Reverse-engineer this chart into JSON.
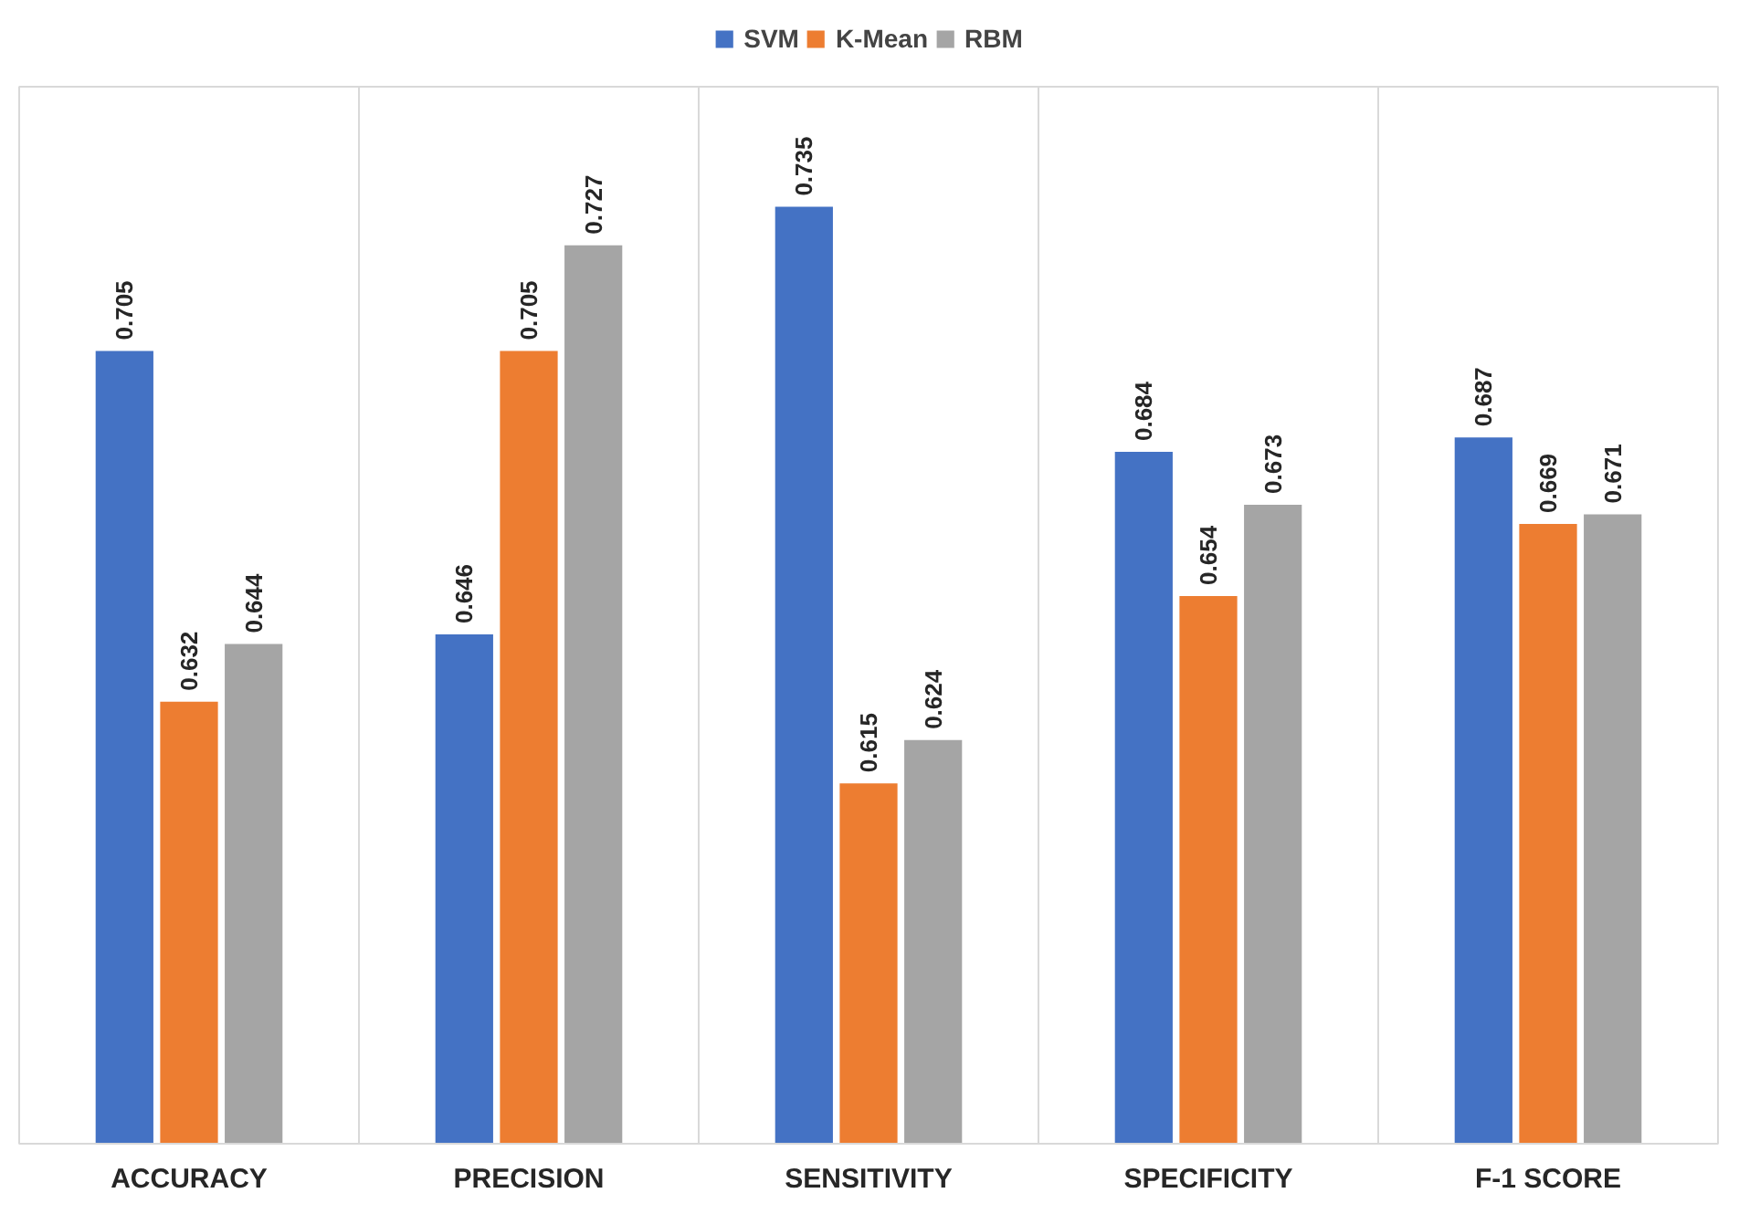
{
  "chart_data": {
    "type": "bar",
    "categories": [
      "ACCURACY",
      "PRECISION",
      "SENSITIVITY",
      "SPECIFICITY",
      "F-1 SCORE"
    ],
    "series": [
      {
        "name": "SVM",
        "color": "#4472c4",
        "values": [
          0.705,
          0.646,
          0.735,
          0.684,
          0.687
        ]
      },
      {
        "name": "K-Mean",
        "color": "#ed7d31",
        "values": [
          0.632,
          0.705,
          0.615,
          0.654,
          0.669
        ]
      },
      {
        "name": "RBM",
        "color": "#a5a5a5",
        "values": [
          0.644,
          0.727,
          0.624,
          0.673,
          0.671
        ]
      }
    ],
    "ylim": [
      0.54,
      0.76
    ],
    "data_labels": true,
    "legend": "top",
    "grid": "x",
    "tick_labels": "x"
  }
}
